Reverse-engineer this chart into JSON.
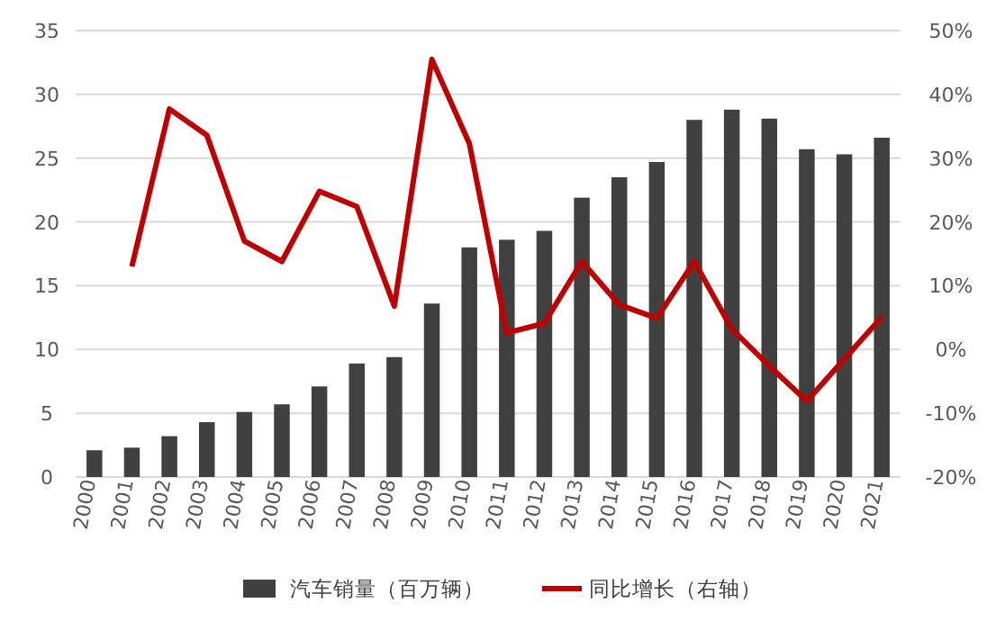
{
  "chart_data": {
    "type": "bar",
    "categories": [
      "2000",
      "2001",
      "2002",
      "2003",
      "2004",
      "2005",
      "2006",
      "2007",
      "2008",
      "2009",
      "2010",
      "2011",
      "2012",
      "2013",
      "2014",
      "2015",
      "2016",
      "2017",
      "2018",
      "2019",
      "2020",
      "2021"
    ],
    "series": [
      {
        "name": "汽车销量（百万辆）",
        "color": "#404040",
        "values": [
          2.1,
          2.3,
          3.2,
          4.3,
          5.1,
          5.7,
          7.1,
          8.9,
          9.4,
          13.6,
          18.0,
          18.6,
          19.3,
          21.9,
          23.5,
          24.7,
          28.0,
          28.8,
          28.1,
          25.7,
          25.3,
          26.6
        ]
      },
      {
        "name": "同比增长（右轴）",
        "type": "line",
        "axis": "y2",
        "color": "#c00000",
        "values": [
          null,
          13,
          37.7,
          33.6,
          17,
          13.8,
          24.8,
          22.4,
          6.8,
          45.5,
          32.3,
          2.6,
          4.1,
          13.8,
          7,
          4.9,
          13.8,
          3.2,
          -2.6,
          -8.1,
          -1.5,
          5.1
        ]
      }
    ],
    "ylim": [
      0,
      35
    ],
    "yticks": [
      0,
      5,
      10,
      15,
      20,
      25,
      30,
      35
    ],
    "y2lim": [
      -20,
      50
    ],
    "y2ticks": [
      {
        "value": -20,
        "label": "-20%"
      },
      {
        "value": -10,
        "label": "-10%"
      },
      {
        "value": 0,
        "label": "0%"
      },
      {
        "value": 10,
        "label": "10%"
      },
      {
        "value": 20,
        "label": "20%"
      },
      {
        "value": 30,
        "label": "30%"
      },
      {
        "value": 40,
        "label": "40%"
      },
      {
        "value": 50,
        "label": "50%"
      }
    ],
    "grid": "y",
    "legend": "bottom",
    "marker": "none"
  }
}
